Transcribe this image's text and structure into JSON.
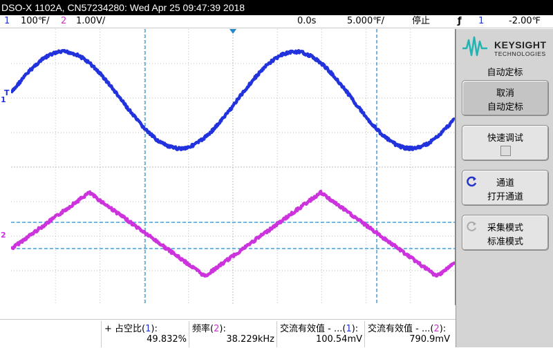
{
  "title_bar": {
    "text": "DSO-X 1102A, CN57234280: Wed Apr 25 09:47:39 2018"
  },
  "status_bar": {
    "ch1_num": "1",
    "ch1_scale": "100℉/",
    "ch2_num": "2",
    "ch2_scale": "1.00V/",
    "time_delay": "0.0s",
    "time_scale": "5.000℉/",
    "run_state": "停止",
    "trigger_icon": "trigger-edge-icon",
    "trigger_channel": "1",
    "trigger_level": "-2.00℉"
  },
  "left_markers": {
    "trigger_level": "T",
    "ch1_ground": "1",
    "ch2_ground": "2"
  },
  "side_panel": {
    "logo_line1": "KEYSIGHT",
    "logo_line2": "TECHNOLOGIES",
    "menu_title": "自动定标",
    "softkeys": [
      {
        "line1": "取消",
        "line2": "自动定标"
      },
      {
        "line1": "快速调试",
        "line2": ""
      },
      {
        "line1": "通道",
        "line2": "打开通道"
      },
      {
        "line1": "采集模式",
        "line2": "标准模式"
      }
    ]
  },
  "measurements": [
    {
      "label": "+ 占空比",
      "channel": "1",
      "value": "49.832%"
    },
    {
      "label": "频率",
      "channel": "2",
      "value": "38.229kHz"
    },
    {
      "label": "交流有效值 - ...",
      "channel": "1",
      "value": "100.54mV"
    },
    {
      "label": "交流有效值 - ...",
      "channel": "2",
      "value": "790.9mV"
    }
  ],
  "colors": {
    "ch1": "#2233dd",
    "ch2": "#cc33dd",
    "cursor": "#2288cc",
    "grid": "#bbbbbb",
    "accent_logo": "#22b3b3"
  }
}
